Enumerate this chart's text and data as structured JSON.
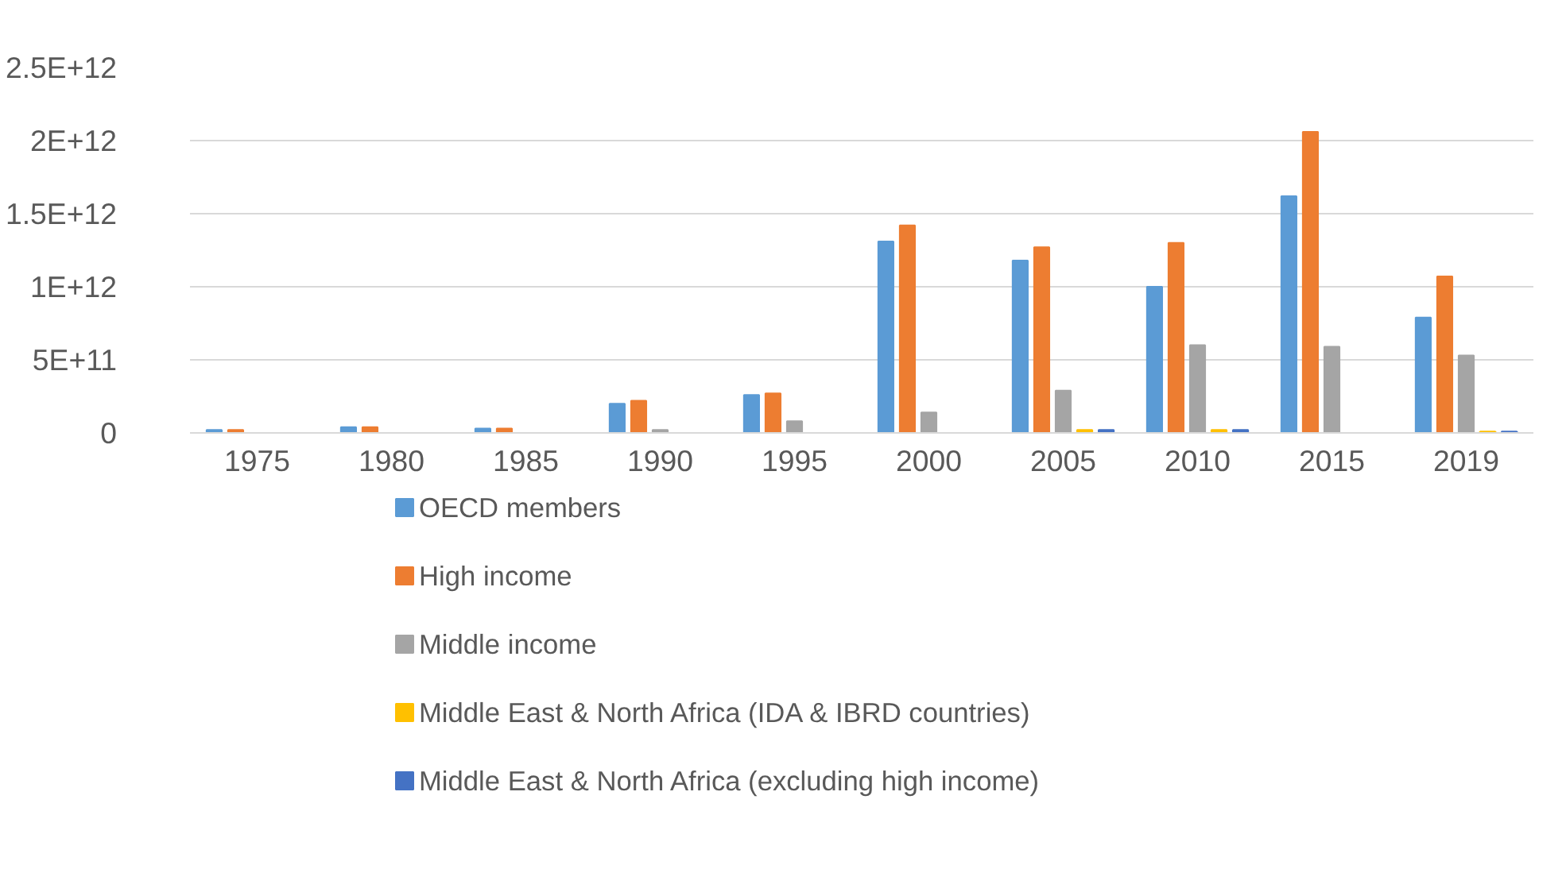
{
  "chart_data": {
    "type": "bar",
    "categories": [
      "1975",
      "1980",
      "1985",
      "1990",
      "1995",
      "2000",
      "2005",
      "2010",
      "2015",
      "2019"
    ],
    "series": [
      {
        "name": "OECD members",
        "color": "#5b9bd5",
        "values": [
          20000000000.0,
          40000000000.0,
          30000000000.0,
          200000000000.0,
          260000000000.0,
          1310000000000.0,
          1180000000000.0,
          1000000000000.0,
          1620000000000.0,
          790000000000.0
        ]
      },
      {
        "name": "High income",
        "color": "#ed7d31",
        "values": [
          20000000000.0,
          40000000000.0,
          30000000000.0,
          220000000000.0,
          270000000000.0,
          1420000000000.0,
          1270000000000.0,
          1300000000000.0,
          2060000000000.0,
          1070000000000.0
        ]
      },
      {
        "name": "Middle income",
        "color": "#a5a5a5",
        "values": [
          0,
          0,
          0,
          20000000000.0,
          80000000000.0,
          140000000000.0,
          290000000000.0,
          600000000000.0,
          590000000000.0,
          530000000000.0
        ]
      },
      {
        "name": "Middle East & North Africa (IDA & IBRD countries)",
        "color": "#ffc000",
        "values": [
          0,
          0,
          0,
          0,
          0,
          0,
          20000000000.0,
          20000000000.0,
          0,
          10000000000.0
        ]
      },
      {
        "name": "Middle East & North Africa (excluding high income)",
        "color": "#4472c4",
        "values": [
          0,
          0,
          0,
          0,
          0,
          0,
          20000000000.0,
          20000000000.0,
          0,
          10000000000.0
        ]
      }
    ],
    "ylim": [
      0,
      2500000000000.0
    ],
    "yticks": [
      0,
      {
        "value": 500000000000.0,
        "label": "5E+11"
      },
      {
        "value": 1000000000000.0,
        "label": "1E+12"
      },
      {
        "value": 1500000000000.0,
        "label": "1.5E+12"
      },
      {
        "value": 2000000000000.0,
        "label": "2E+12"
      },
      {
        "value": 2500000000000.0,
        "label": "2.5E+12"
      }
    ],
    "grid": "y",
    "legend": "bottom"
  }
}
